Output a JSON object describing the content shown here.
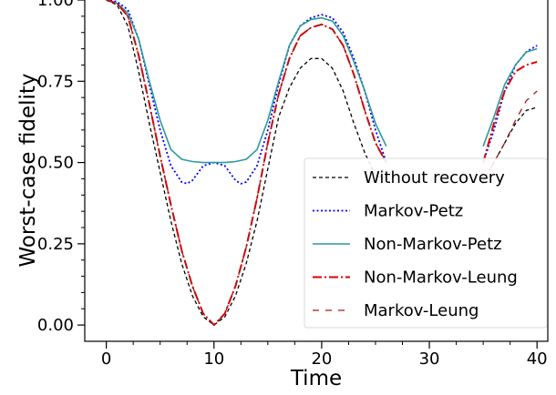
{
  "chart_data": {
    "type": "line",
    "xlabel": "Time",
    "ylabel": "Worst-case fidelity",
    "xlim": [
      -2,
      41
    ],
    "ylim": [
      -0.05,
      1.0
    ],
    "xticks": [
      0,
      10,
      20,
      30,
      40
    ],
    "yticks": [
      0.0,
      0.25,
      0.5,
      0.75,
      1.0
    ],
    "ytick_labels": [
      "0.00",
      "0.25",
      "0.50",
      "0.75",
      "1.00"
    ],
    "xtick_labels": [
      "0",
      "10",
      "20",
      "30",
      "40"
    ],
    "grid": false,
    "legend_position": "center-right",
    "series": [
      {
        "name": "Without recovery",
        "color": "#000000",
        "dash": "4,3",
        "width": 1.3,
        "x": [
          0,
          1,
          2,
          3,
          4,
          5,
          6,
          7,
          8,
          9,
          10,
          11,
          12,
          13,
          14,
          15,
          16,
          17,
          18,
          19,
          20,
          21,
          22,
          23,
          24,
          25,
          26,
          35,
          36,
          37,
          38,
          39,
          40
        ],
        "y": [
          1.0,
          0.985,
          0.92,
          0.78,
          0.62,
          0.47,
          0.32,
          0.19,
          0.09,
          0.025,
          0.0,
          0.025,
          0.09,
          0.19,
          0.32,
          0.48,
          0.64,
          0.73,
          0.79,
          0.82,
          0.82,
          0.79,
          0.72,
          0.62,
          0.53,
          0.46,
          0.45,
          0.44,
          0.5,
          0.56,
          0.62,
          0.66,
          0.67
        ]
      },
      {
        "name": "Markov-Petz",
        "color": "#0000ff",
        "dash": "2,2.5",
        "width": 1.8,
        "x": [
          0,
          1,
          2,
          3,
          4,
          5,
          6,
          7,
          7.5,
          8,
          9,
          10,
          11,
          12,
          12.5,
          13,
          14,
          15,
          16,
          17,
          18,
          19,
          20,
          21,
          22,
          23,
          24,
          25,
          26,
          35,
          36,
          37,
          38,
          39,
          40
        ],
        "y": [
          1.0,
          0.995,
          0.97,
          0.88,
          0.74,
          0.6,
          0.49,
          0.44,
          0.435,
          0.445,
          0.49,
          0.5,
          0.49,
          0.445,
          0.435,
          0.44,
          0.49,
          0.6,
          0.74,
          0.86,
          0.92,
          0.945,
          0.955,
          0.945,
          0.9,
          0.82,
          0.72,
          0.6,
          0.5,
          0.5,
          0.6,
          0.72,
          0.8,
          0.84,
          0.86
        ]
      },
      {
        "name": "Non-Markov-Petz",
        "color": "#2e9a9a",
        "dash": "",
        "width": 1.6,
        "x": [
          0,
          1,
          2,
          3,
          4,
          5,
          6,
          7,
          8,
          9,
          10,
          11,
          12,
          13,
          14,
          15,
          16,
          17,
          18,
          19,
          20,
          21,
          22,
          23,
          24,
          25,
          26,
          35,
          36,
          37,
          38,
          39,
          40
        ],
        "y": [
          1.0,
          0.99,
          0.96,
          0.88,
          0.75,
          0.63,
          0.54,
          0.51,
          0.503,
          0.5,
          0.5,
          0.5,
          0.503,
          0.51,
          0.54,
          0.63,
          0.75,
          0.86,
          0.92,
          0.94,
          0.945,
          0.935,
          0.89,
          0.81,
          0.72,
          0.62,
          0.55,
          0.55,
          0.64,
          0.74,
          0.8,
          0.84,
          0.85
        ]
      },
      {
        "name": "Non-Markov-Leung",
        "color": "#dd0000",
        "dash": "10,3,2,3",
        "width": 2.0,
        "x": [
          0,
          1,
          2,
          3,
          4,
          5,
          6,
          7,
          8,
          9,
          10,
          11,
          12,
          13,
          14,
          15,
          16,
          17,
          18,
          19,
          20,
          21,
          22,
          23,
          24,
          25,
          26,
          35,
          36,
          37,
          38,
          39,
          40
        ],
        "y": [
          1.0,
          0.99,
          0.95,
          0.83,
          0.68,
          0.52,
          0.37,
          0.23,
          0.12,
          0.035,
          0.0,
          0.035,
          0.12,
          0.24,
          0.39,
          0.56,
          0.71,
          0.82,
          0.89,
          0.915,
          0.925,
          0.91,
          0.86,
          0.77,
          0.66,
          0.56,
          0.5,
          0.5,
          0.62,
          0.72,
          0.78,
          0.8,
          0.81
        ]
      },
      {
        "name": "Markov-Leung",
        "color": "#a01c1c",
        "dash": "7,7",
        "width": 1.3,
        "x": [
          0,
          1,
          2,
          3,
          4,
          5,
          6,
          7,
          8,
          9,
          10,
          11,
          12,
          13,
          14,
          15,
          16,
          17,
          18,
          19,
          20,
          21,
          22,
          23,
          24,
          25,
          26,
          35,
          36,
          37,
          38,
          39,
          40
        ],
        "y": [
          1.0,
          0.99,
          0.95,
          0.83,
          0.68,
          0.52,
          0.37,
          0.23,
          0.12,
          0.035,
          0.0,
          0.035,
          0.12,
          0.24,
          0.39,
          0.56,
          0.71,
          0.82,
          0.89,
          0.915,
          0.925,
          0.91,
          0.86,
          0.77,
          0.66,
          0.56,
          0.5,
          0.44,
          0.5,
          0.56,
          0.63,
          0.69,
          0.72
        ]
      }
    ]
  }
}
